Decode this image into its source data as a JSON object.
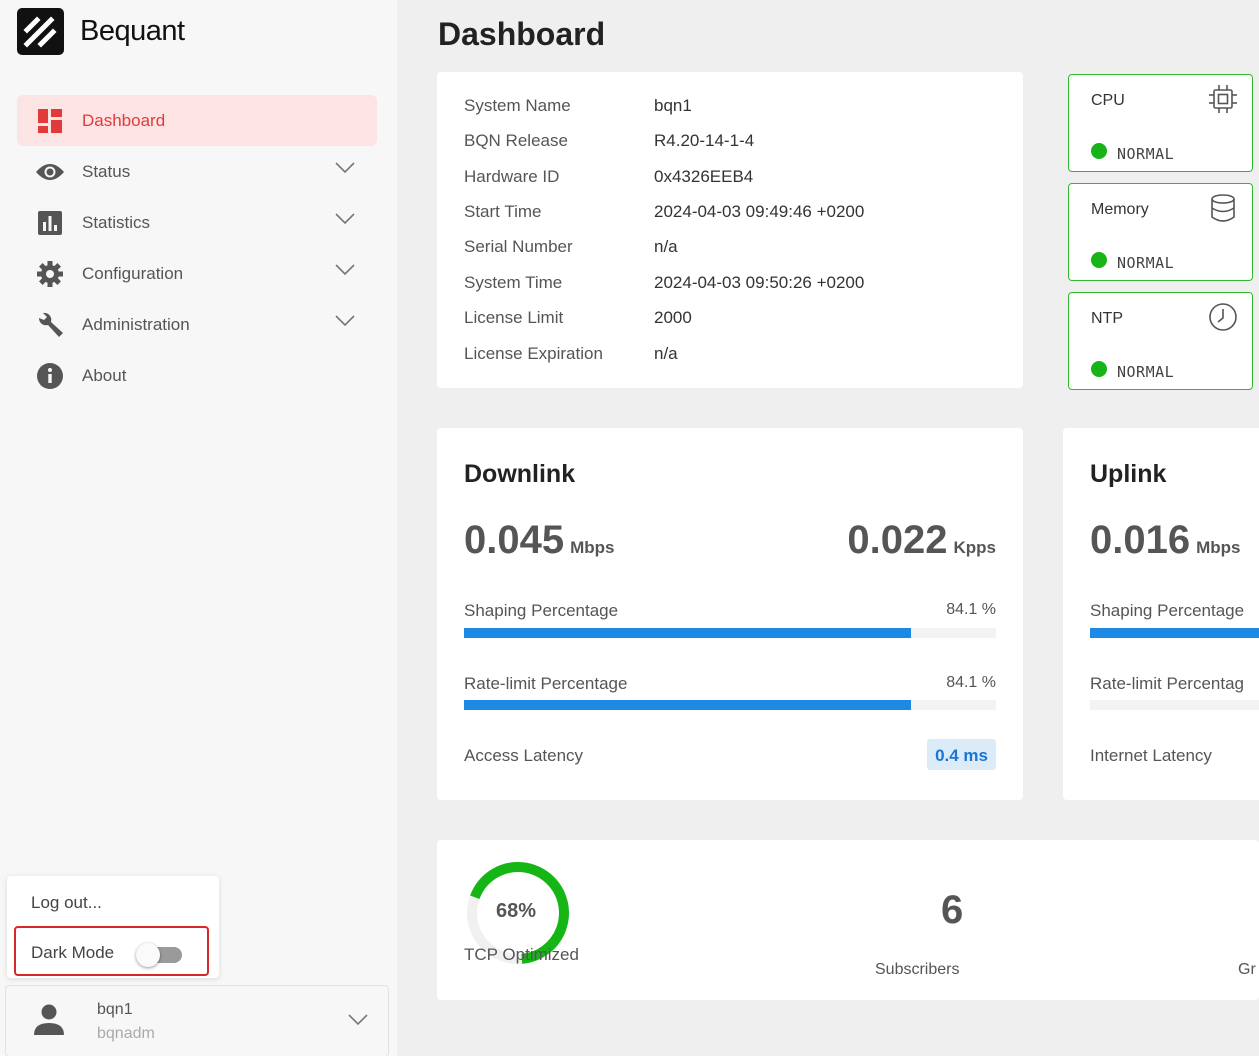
{
  "app": {
    "name": "Bequant"
  },
  "nav": {
    "items": [
      {
        "label": "Dashboard",
        "icon": "dashboard-icon",
        "active": true
      },
      {
        "label": "Status",
        "icon": "eye-icon",
        "expandable": true
      },
      {
        "label": "Statistics",
        "icon": "bar-chart-icon",
        "expandable": true
      },
      {
        "label": "Configuration",
        "icon": "gear-icon",
        "expandable": true
      },
      {
        "label": "Administration",
        "icon": "wrench-icon",
        "expandable": true
      },
      {
        "label": "About",
        "icon": "info-icon"
      }
    ]
  },
  "user_menu": {
    "logout_label": "Log out...",
    "dark_mode_label": "Dark Mode",
    "dark_mode_on": false
  },
  "user": {
    "name": "bqn1",
    "role": "bqnadm"
  },
  "page": {
    "title": "Dashboard"
  },
  "system_info": [
    {
      "key": "System Name",
      "value": "bqn1"
    },
    {
      "key": "BQN Release",
      "value": "R4.20-14-1-4"
    },
    {
      "key": "Hardware ID",
      "value": "0x4326EEB4"
    },
    {
      "key": "Start Time",
      "value": "2024-04-03 09:49:46 +0200"
    },
    {
      "key": "Serial Number",
      "value": "n/a"
    },
    {
      "key": "System Time",
      "value": "2024-04-03 09:50:26 +0200"
    },
    {
      "key": "License Limit",
      "value": "2000"
    },
    {
      "key": "License Expiration",
      "value": "n/a"
    }
  ],
  "status_cards": [
    {
      "name": "CPU",
      "icon": "cpu-chip-icon",
      "status": "NORMAL",
      "color": "#17b317"
    },
    {
      "name": "Memory",
      "icon": "database-icon",
      "status": "NORMAL",
      "color": "#17b317"
    },
    {
      "name": "NTP",
      "icon": "clock-icon",
      "status": "NORMAL",
      "color": "#17b317"
    }
  ],
  "downlink": {
    "title": "Downlink",
    "throughput": "0.045",
    "throughput_unit": "Mbps",
    "packets": "0.022",
    "packets_unit": "Kpps",
    "shaping_label": "Shaping Percentage",
    "shaping_value": "84.1 %",
    "shaping_fraction": 0.841,
    "ratelimit_label": "Rate-limit Percentage",
    "ratelimit_value": "84.1 %",
    "ratelimit_fraction": 0.841,
    "latency_label": "Access Latency",
    "latency_value": "0.4 ms"
  },
  "uplink": {
    "title": "Uplink",
    "throughput": "0.016",
    "throughput_unit": "Mbps",
    "shaping_label": "Shaping Percentage",
    "ratelimit_label": "Rate-limit Percentag",
    "latency_label": "Internet Latency"
  },
  "summary": {
    "tcp_percent": "68%",
    "tcp_fraction": 0.68,
    "tcp_label": "TCP Optimized",
    "subscribers": "6",
    "subscribers_label": "Subscribers",
    "clipped_label": "Gr"
  },
  "colors": {
    "accent": "#e23a3a",
    "bar": "#1e88e5",
    "ok": "#17b317"
  }
}
